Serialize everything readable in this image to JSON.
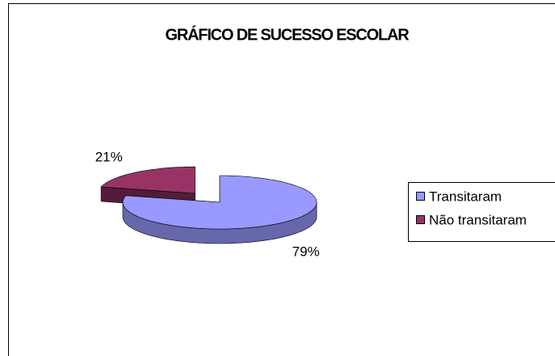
{
  "chart_data": {
    "type": "pie",
    "title": "GRÁFICO DE SUCESSO ESCOLAR",
    "categories": [
      "Transitaram",
      "Não transitaram"
    ],
    "values": [
      79,
      21
    ],
    "value_labels": [
      "79%",
      "21%"
    ],
    "colors": [
      "#9999ff",
      "#993366"
    ],
    "legend": "right"
  }
}
